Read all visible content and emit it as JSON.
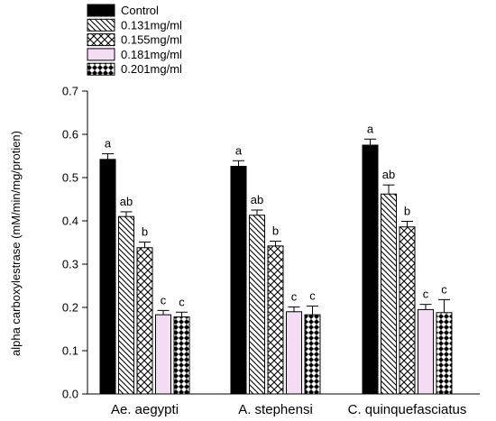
{
  "chart_data": {
    "type": "bar",
    "ylabel": "alpha carboxylestrase (mM/min/mg/protien)",
    "xlabel": "",
    "ylim": [
      0,
      0.7
    ],
    "yticks": [
      "0.0",
      "0.1",
      "0.2",
      "0.3",
      "0.4",
      "0.5",
      "0.6",
      "0.7"
    ],
    "grid": false,
    "legend_position": "top-left",
    "categories": [
      "Ae. aegypti",
      "A. stephensi",
      "C. quinquefasciatus"
    ],
    "series": [
      {
        "name": "Control",
        "pattern": "solid",
        "color": "#000000",
        "values": [
          0.542,
          0.526,
          0.575
        ],
        "errors": [
          0.013,
          0.013,
          0.014
        ],
        "labels": [
          "a",
          "a",
          "a"
        ]
      },
      {
        "name": "0.131mg/ml",
        "pattern": "diagonal-lines",
        "color": "#000000",
        "values": [
          0.41,
          0.413,
          0.462
        ],
        "errors": [
          0.011,
          0.012,
          0.021
        ],
        "labels": [
          "ab",
          "ab",
          "ab"
        ]
      },
      {
        "name": "0.155mg/ml",
        "pattern": "crosshatch",
        "color": "#000000",
        "values": [
          0.338,
          0.342,
          0.386
        ],
        "errors": [
          0.013,
          0.011,
          0.013
        ],
        "labels": [
          "b",
          "b",
          "b"
        ]
      },
      {
        "name": "0.181mg/ml",
        "pattern": "solid",
        "color": "#f4dcf4",
        "values": [
          0.183,
          0.19,
          0.195
        ],
        "errors": [
          0.01,
          0.011,
          0.012
        ],
        "labels": [
          "c",
          "c",
          "c"
        ]
      },
      {
        "name": "0.201mg/ml",
        "pattern": "diamonds",
        "color": "#000000",
        "values": [
          0.178,
          0.183,
          0.188
        ],
        "errors": [
          0.011,
          0.02,
          0.03
        ],
        "labels": [
          "c",
          "c",
          "c"
        ]
      }
    ]
  }
}
